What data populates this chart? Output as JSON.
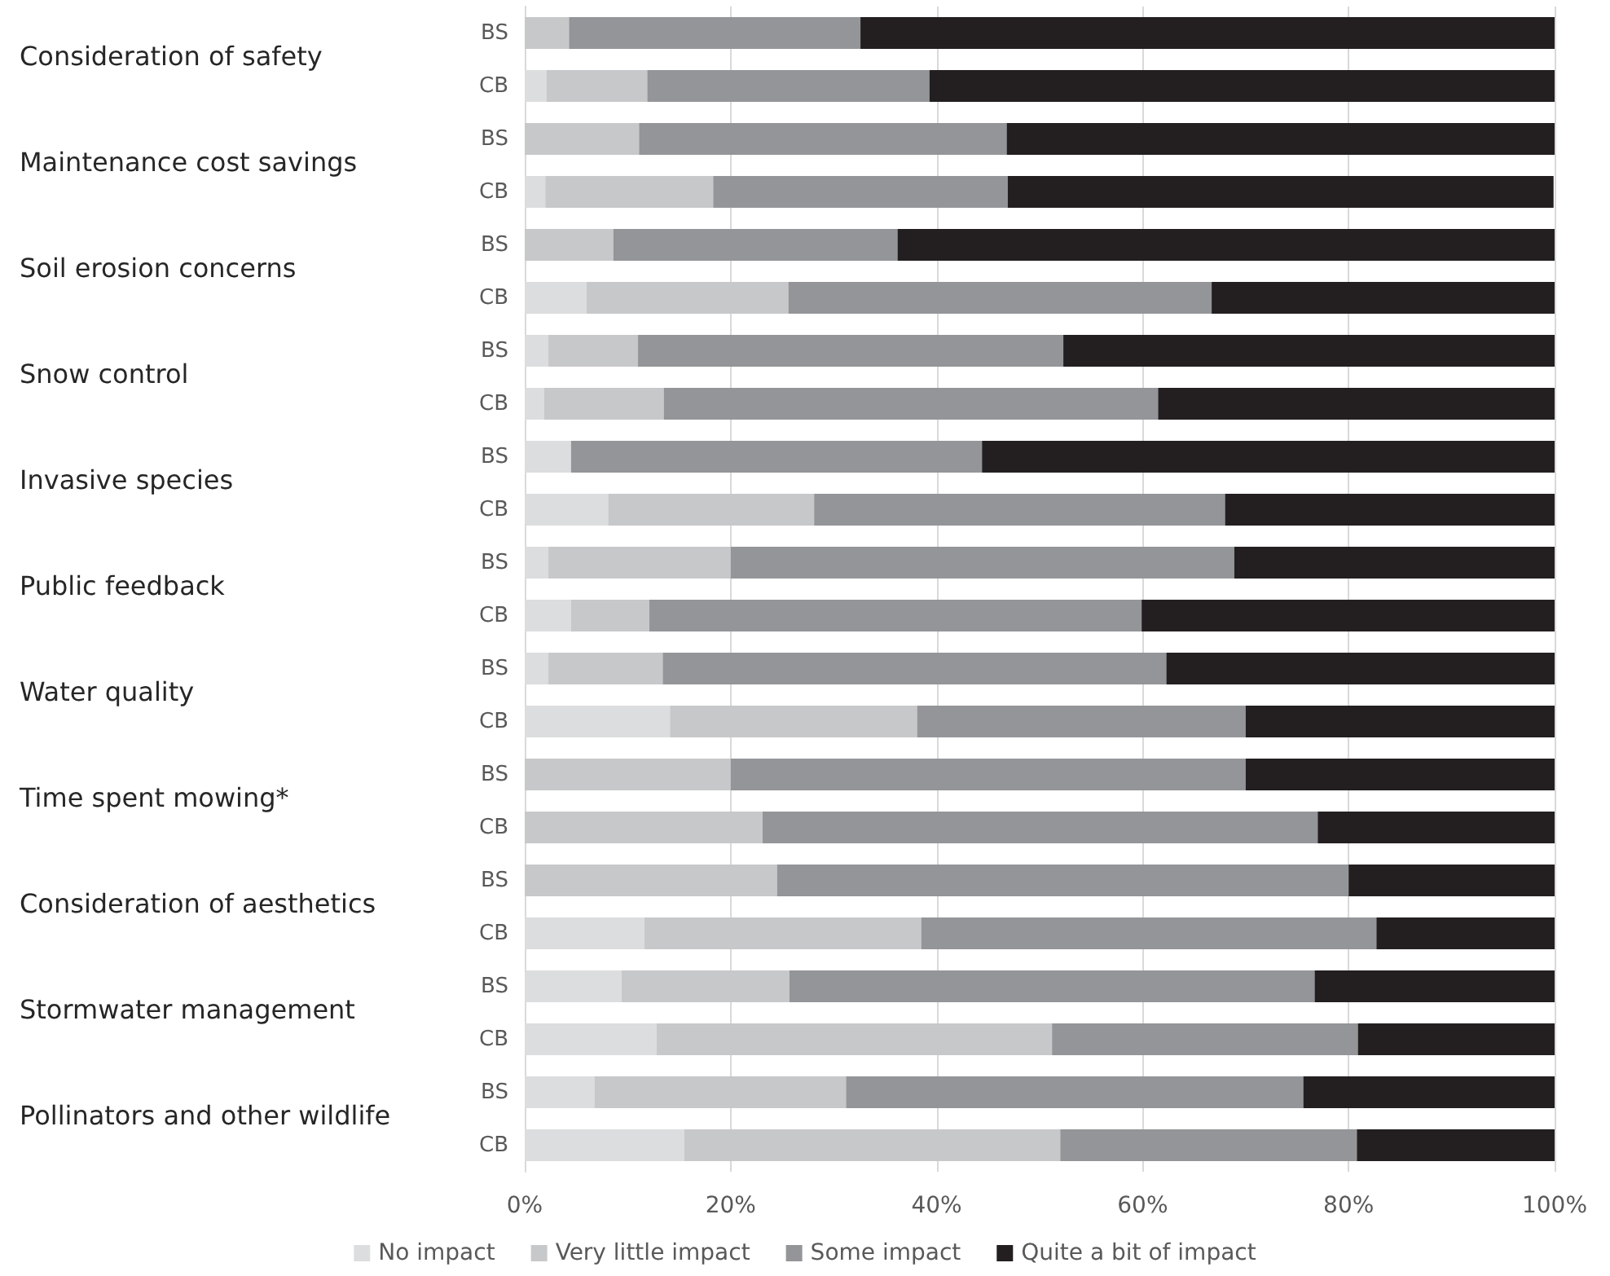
{
  "chart_data": {
    "type": "bar",
    "orientation": "horizontal",
    "stacked": true,
    "categories": [
      "BS",
      "CB",
      "BS",
      "CB",
      "BS",
      "CB",
      "BS",
      "CB",
      "BS",
      "CB",
      "BS",
      "CB",
      "BS",
      "CB",
      "BS",
      "CB",
      "BS",
      "CB",
      "BS",
      "CB",
      "BS",
      "CB"
    ],
    "annotations": [
      "Consideration of safety",
      "Maintenance cost savings",
      "Soil erosion concerns",
      "Snow control",
      "Invasive species",
      "Public feedback",
      "Water quality",
      "Time spent mowing*",
      "Consideration of aesthetics",
      "Stormwater management",
      "Pollinators and other wildlife"
    ],
    "series": [
      {
        "name": "No impact",
        "color": "#dcddde",
        "values": [
          0,
          2.1,
          0,
          2.0,
          0,
          6.0,
          2.3,
          1.9,
          4.5,
          8.1,
          2.3,
          4.5,
          2.3,
          14.1,
          0,
          0,
          0,
          11.6,
          9.4,
          12.8,
          6.8,
          15.5
        ]
      },
      {
        "name": "Very little impact",
        "color": "#c7c8ca",
        "values": [
          4.3,
          9.8,
          11.1,
          16.3,
          8.6,
          19.6,
          8.7,
          11.6,
          0,
          20.0,
          17.7,
          7.6,
          11.1,
          24.0,
          20.0,
          23.1,
          24.5,
          26.9,
          16.3,
          38.4,
          24.4,
          36.5
        ]
      },
      {
        "name": "Some impact",
        "color": "#939598",
        "values": [
          28.3,
          27.4,
          35.7,
          28.6,
          27.6,
          41.1,
          41.3,
          48.0,
          39.9,
          39.9,
          48.9,
          47.8,
          48.9,
          31.9,
          50.0,
          53.9,
          55.5,
          44.2,
          51.0,
          29.7,
          44.4,
          28.8
        ]
      },
      {
        "name": "Quite a bit of impact",
        "color": "#231f20",
        "values": [
          67.4,
          60.8,
          53.2,
          53.0,
          63.8,
          33.3,
          47.7,
          38.5,
          55.6,
          32.0,
          31.1,
          40.1,
          37.7,
          30.0,
          30.0,
          23.0,
          20.0,
          17.3,
          23.3,
          19.1,
          24.4,
          19.2
        ]
      }
    ],
    "xlim": [
      0,
      100
    ],
    "xticks": [
      {
        "value": 0,
        "label": "0%"
      },
      {
        "value": 20,
        "label": "20%"
      },
      {
        "value": 40,
        "label": "40%"
      },
      {
        "value": 60,
        "label": "60%"
      },
      {
        "value": 80,
        "label": "80%"
      },
      {
        "value": 100,
        "label": "100%"
      }
    ],
    "grid": "x",
    "legend": "bottom"
  }
}
